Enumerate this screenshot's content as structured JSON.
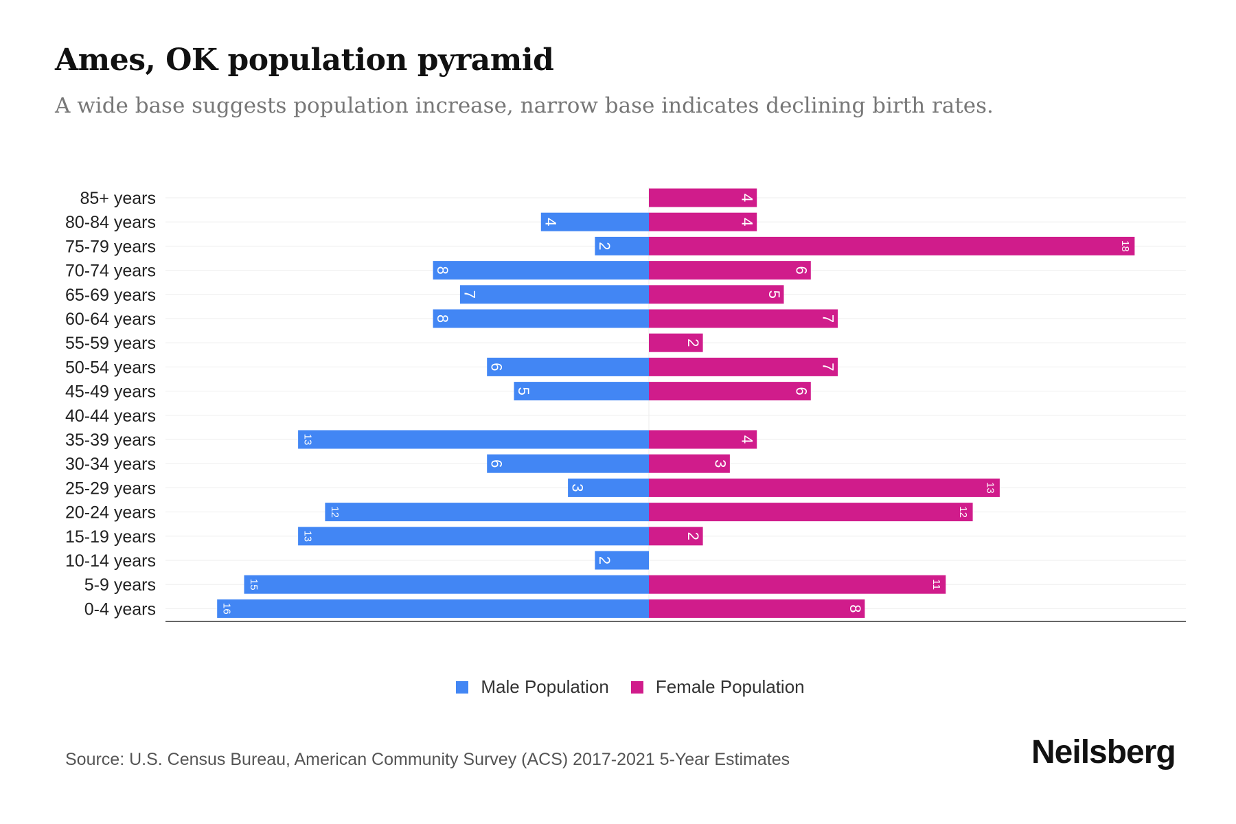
{
  "chart_data": {
    "type": "bar",
    "orientation": "horizontal-pyramid",
    "title": "Ames, OK population pyramid",
    "subtitle": "A wide base suggests population increase, narrow base indicates declining birth rates.",
    "categories": [
      "85+ years",
      "80-84 years",
      "75-79 years",
      "70-74 years",
      "65-69 years",
      "60-64 years",
      "55-59 years",
      "50-54 years",
      "45-49 years",
      "40-44 years",
      "35-39 years",
      "30-34 years",
      "25-29 years",
      "20-24 years",
      "15-19 years",
      "10-14 years",
      "5-9 years",
      "0-4 years"
    ],
    "series": [
      {
        "name": "Male Population",
        "color": "#4286f4",
        "values": [
          0,
          4,
          2,
          8,
          7,
          8,
          0,
          6,
          5,
          0,
          13,
          6,
          3,
          12,
          13,
          2,
          15,
          16
        ]
      },
      {
        "name": "Female Population",
        "color": "#d01c8b",
        "values": [
          4,
          4,
          18,
          6,
          5,
          7,
          2,
          7,
          6,
          0,
          4,
          3,
          13,
          12,
          2,
          0,
          11,
          8
        ]
      }
    ],
    "xlim": [
      -18,
      20
    ],
    "grid": true,
    "legend_position": "bottom-center"
  },
  "source": "Source: U.S. Census Bureau, American Community Survey (ACS) 2017-2021 5-Year Estimates",
  "logo": "Neilsberg"
}
